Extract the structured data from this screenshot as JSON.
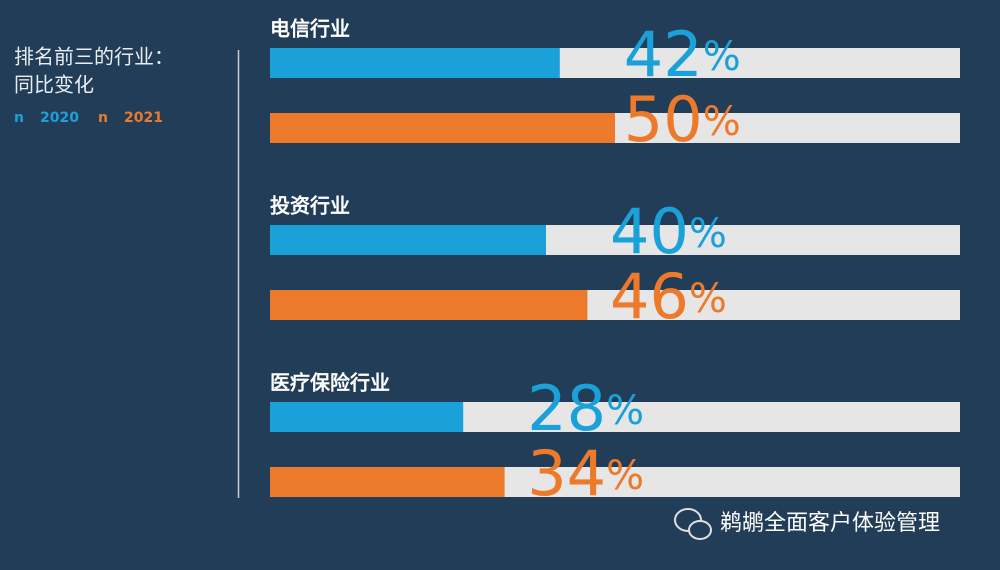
{
  "chart_data": {
    "type": "bar",
    "orientation": "horizontal",
    "title_lines": [
      "排名前三的行业：",
      "同比变化"
    ],
    "legend_marker": "n",
    "categories": [
      "电信行业",
      "投资行业",
      "医疗保险行业"
    ],
    "series": [
      {
        "name": "2020",
        "color": "#1ba1d9",
        "values": [
          42,
          40,
          28
        ],
        "value_labels": [
          "42%",
          "40%",
          "28%"
        ]
      },
      {
        "name": "2021",
        "color": "#ec7a2a",
        "values": [
          50,
          46,
          34
        ],
        "value_labels": [
          "50%",
          "46%",
          "34%"
        ]
      }
    ],
    "track_color": "#e6e6e6",
    "xlim": [
      0,
      100
    ]
  },
  "watermark": "鹈鹕全面客户体验管理"
}
